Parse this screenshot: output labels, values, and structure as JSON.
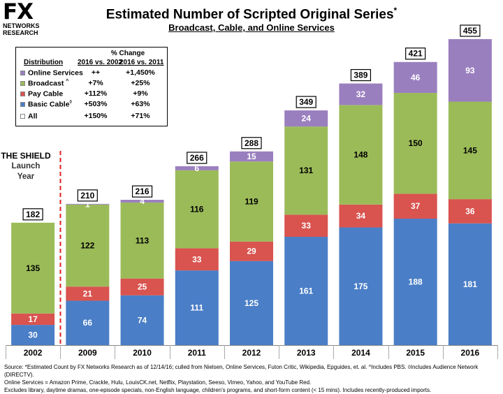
{
  "logo": {
    "brand": "FX",
    "line1": "NETWORKS",
    "line2": "RESEARCH"
  },
  "chart_data": {
    "type": "bar",
    "stacked": true,
    "title": "Estimated Number of Scripted Original Series",
    "title_mark": "*",
    "subtitle": "Broadcast, Cable, and Online Services",
    "categories": [
      "2002",
      "2009",
      "2010",
      "2011",
      "2012",
      "2013",
      "2014",
      "2015",
      "2016"
    ],
    "series": [
      {
        "name": "Basic Cable",
        "color": "#4a7ec7",
        "values": [
          30,
          66,
          74,
          111,
          125,
          161,
          175,
          188,
          181
        ]
      },
      {
        "name": "Pay Cable",
        "color": "#d9534f",
        "values": [
          17,
          21,
          25,
          33,
          29,
          33,
          34,
          37,
          36
        ]
      },
      {
        "name": "Broadcast",
        "color": "#9bbb59",
        "values": [
          135,
          122,
          113,
          116,
          119,
          131,
          148,
          150,
          145
        ]
      },
      {
        "name": "Online Services",
        "color": "#9a7fbf",
        "values": [
          0,
          1,
          4,
          6,
          15,
          24,
          32,
          46,
          93
        ]
      }
    ],
    "segment_labels": [
      [
        "30",
        "17",
        "135",
        ""
      ],
      [
        "66",
        "21",
        "122",
        "1"
      ],
      [
        "74",
        "25",
        "113",
        "4"
      ],
      [
        "111",
        "33",
        "116",
        "6"
      ],
      [
        "125",
        "29",
        "119",
        "15"
      ],
      [
        "161",
        "33",
        "131",
        "24"
      ],
      [
        "175",
        "34",
        "148",
        "32"
      ],
      [
        "188",
        "37",
        "150",
        "46"
      ],
      [
        "181",
        "36",
        "145",
        "93"
      ]
    ],
    "totals": [
      182,
      210,
      216,
      266,
      288,
      349,
      389,
      421,
      455
    ],
    "ylim": [
      0,
      455
    ],
    "grid": false,
    "legend": {
      "placement": "top-left",
      "header_change": "% Change",
      "header_distribution": "Distribution",
      "header_col1": "2016 vs. 2002",
      "header_col2": "2016 vs. 2011",
      "rows": [
        {
          "name": "Online Services",
          "mark": "",
          "col1": "++",
          "col2": "+1,450%",
          "color": "#9a7fbf"
        },
        {
          "name": "Broadcast",
          "mark": "^",
          "col1": "+7%",
          "col2": "+25%",
          "color": "#9bbb59"
        },
        {
          "name": "Pay Cable",
          "mark": "",
          "col1": "+112%",
          "col2": "+9%",
          "color": "#d9534f"
        },
        {
          "name": "Basic Cable",
          "mark": "◊",
          "col1": "+503%",
          "col2": "+63%",
          "color": "#4a7ec7"
        },
        {
          "name": "All",
          "mark": "",
          "col1": "+150%",
          "col2": "+71%",
          "color": "#ffffff"
        }
      ]
    },
    "annotation": {
      "line1": "THE SHIELD",
      "line2": "Launch",
      "line3": "Year"
    }
  },
  "footnote": {
    "line1": "Source:  *Estimated Count by FX Networks Research as of 12/14/16; culled from Nielsen, Online Services, Futon Critic, Wikipedia, Epguides, et. al.  ^Includes PBS.  ◊Includes Audience Network (DIRECTV).",
    "line2": "Online Services = Amazon Prime, Crackle, Hulu, LouisCK.net, Netflix, Playstation, Seeso, Vimeo, Yahoo, and YouTube Red.",
    "line3": "Excludes library, daytime dramas, one-episode specials, non-English language, children's programs, and short-form content (< 15 mins).  Includes recently-produced imports."
  }
}
